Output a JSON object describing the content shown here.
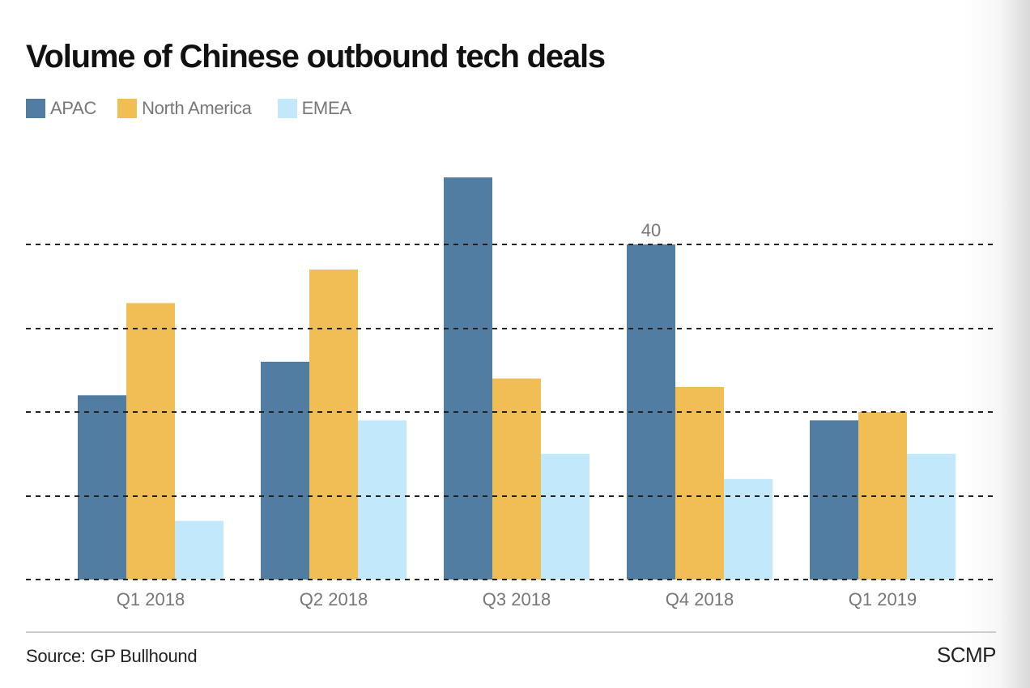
{
  "chart_data": {
    "type": "bar",
    "title": "Volume of Chinese outbound tech deals",
    "xlabel": "",
    "ylabel": "",
    "categories": [
      "Q1 2018",
      "Q2 2018",
      "Q3 2018",
      "Q4 2018",
      "Q1 2019"
    ],
    "series": [
      {
        "name": "APAC",
        "color": "#517da3",
        "values": [
          22,
          26,
          48,
          40,
          19
        ]
      },
      {
        "name": "North America",
        "color": "#f0be55",
        "values": [
          33,
          37,
          24,
          23,
          20
        ]
      },
      {
        "name": "EMEA",
        "color": "#c2e9fb",
        "values": [
          7,
          19,
          15,
          12,
          15
        ]
      }
    ],
    "ylim": [
      0,
      50
    ],
    "gridlines": [
      0,
      10,
      20,
      30,
      40
    ],
    "grid": true,
    "y_tick_labels_shown": false,
    "legend_position": "top-left",
    "data_labels": [
      {
        "series": "APAC",
        "category": "Q4 2018",
        "text": "40"
      }
    ]
  },
  "footer": {
    "source": "Source: GP Bullhound",
    "brand": "SCMP"
  },
  "colors": {
    "title": "#111111",
    "axis_text": "#777777",
    "gridline": "#222222",
    "divider": "#cccccc"
  }
}
